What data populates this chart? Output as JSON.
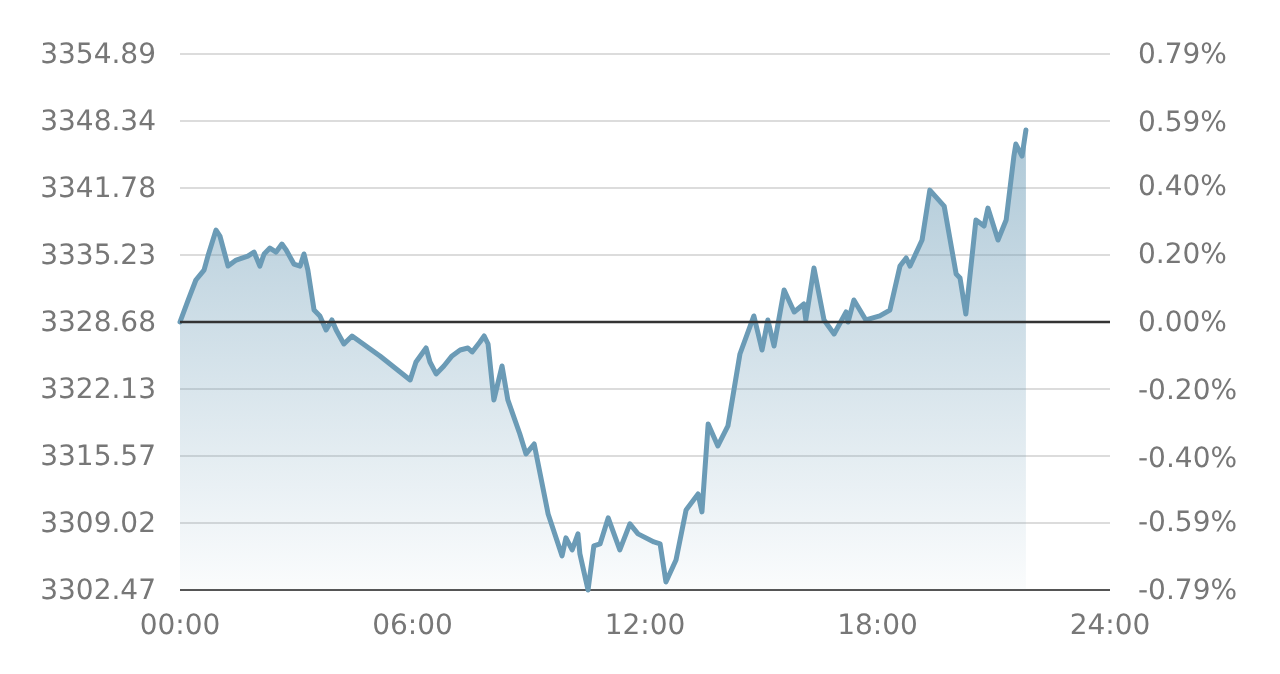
{
  "chart_data": {
    "type": "area",
    "x": [
      0,
      0.21,
      0.41,
      0.62,
      0.72,
      0.93,
      1.03,
      1.24,
      1.45,
      1.75,
      1.91,
      2.06,
      2.17,
      2.32,
      2.48,
      2.63,
      2.74,
      2.94,
      3.1,
      3.2,
      3.3,
      3.46,
      3.61,
      3.77,
      3.92,
      4.03,
      4.23,
      4.44,
      5.16,
      5.94,
      6.09,
      6.35,
      6.45,
      6.61,
      6.81,
      7.02,
      7.23,
      7.43,
      7.54,
      7.74,
      7.85,
      7.95,
      8.1,
      8.31,
      8.46,
      8.77,
      8.93,
      9.14,
      9.5,
      9.86,
      9.96,
      10.12,
      10.27,
      10.32,
      10.53,
      10.68,
      10.84,
      11.05,
      11.35,
      11.61,
      11.82,
      12.23,
      12.39,
      12.54,
      12.8,
      13.06,
      13.37,
      13.47,
      13.63,
      13.88,
      14.14,
      14.45,
      14.81,
      15.02,
      15.17,
      15.33,
      15.59,
      15.85,
      16.1,
      16.15,
      16.36,
      16.62,
      16.88,
      17.19,
      17.24,
      17.39,
      17.7,
      18.06,
      18.32,
      18.58,
      18.74,
      18.84,
      19.15,
      19.35,
      19.72,
      20.03,
      20.13,
      20.28,
      20.54,
      20.75,
      20.85,
      21.11,
      21.32,
      21.52,
      21.57,
      21.73,
      21.83
    ],
    "series": [
      {
        "color": "#6b9bb6",
        "values": [
          3328.68,
          3330.83,
          3332.79,
          3333.76,
          3335.13,
          3337.67,
          3337.09,
          3334.15,
          3334.74,
          3335.13,
          3335.52,
          3334.15,
          3335.33,
          3335.91,
          3335.52,
          3336.3,
          3335.72,
          3334.35,
          3334.15,
          3335.33,
          3333.76,
          3329.85,
          3329.27,
          3327.9,
          3328.88,
          3327.9,
          3326.53,
          3327.31,
          3325.36,
          3323.01,
          3324.77,
          3326.14,
          3324.77,
          3323.6,
          3324.38,
          3325.36,
          3325.94,
          3326.14,
          3325.75,
          3326.72,
          3327.31,
          3326.53,
          3321.06,
          3324.38,
          3321.06,
          3317.73,
          3315.78,
          3316.75,
          3309.91,
          3305.81,
          3307.57,
          3306.39,
          3307.96,
          3306.0,
          3302.47,
          3306.78,
          3306.98,
          3309.52,
          3306.39,
          3308.93,
          3307.96,
          3307.17,
          3306.98,
          3303.26,
          3305.41,
          3310.3,
          3311.87,
          3310.11,
          3318.71,
          3316.56,
          3318.51,
          3325.55,
          3329.27,
          3325.94,
          3328.88,
          3326.33,
          3331.81,
          3329.66,
          3330.44,
          3328.88,
          3333.96,
          3328.88,
          3327.51,
          3329.66,
          3328.68,
          3330.83,
          3328.88,
          3329.27,
          3329.85,
          3334.15,
          3334.94,
          3334.15,
          3336.7,
          3341.58,
          3340.02,
          3333.37,
          3332.98,
          3329.46,
          3338.65,
          3338.06,
          3339.82,
          3336.7,
          3338.65,
          3344.91,
          3346.08,
          3344.91,
          3347.45
        ]
      }
    ],
    "xlim": [
      0,
      24
    ],
    "xticks": [
      {
        "value": 0,
        "label": "00:00"
      },
      {
        "value": 6,
        "label": "06:00"
      },
      {
        "value": 12,
        "label": "12:00"
      },
      {
        "value": 18,
        "label": "18:00"
      },
      {
        "value": 24,
        "label": "24:00"
      }
    ],
    "ylim": [
      3302.47,
      3354.89
    ],
    "yticks": [
      3354.89,
      3348.34,
      3341.78,
      3335.23,
      3328.68,
      3322.13,
      3315.57,
      3309.02,
      3302.47
    ],
    "y2lim": [
      -0.79,
      0.79
    ],
    "y2ticks": [
      {
        "value": 0.79,
        "label": "0.79%"
      },
      {
        "value": 0.59,
        "label": "0.59%"
      },
      {
        "value": 0.4,
        "label": "0.40%"
      },
      {
        "value": 0.2,
        "label": "0.20%"
      },
      {
        "value": 0,
        "label": "0.00%"
      },
      {
        "value": -0.2,
        "label": "-0.20%"
      },
      {
        "value": -0.4,
        "label": "-0.40%"
      },
      {
        "value": -0.59,
        "label": "-0.59%"
      },
      {
        "value": -0.79,
        "label": "-0.79%"
      }
    ],
    "ref_lines": [
      {
        "axis": "y",
        "value": 3328.68,
        "color": "#333333"
      }
    ],
    "grid": "y"
  }
}
